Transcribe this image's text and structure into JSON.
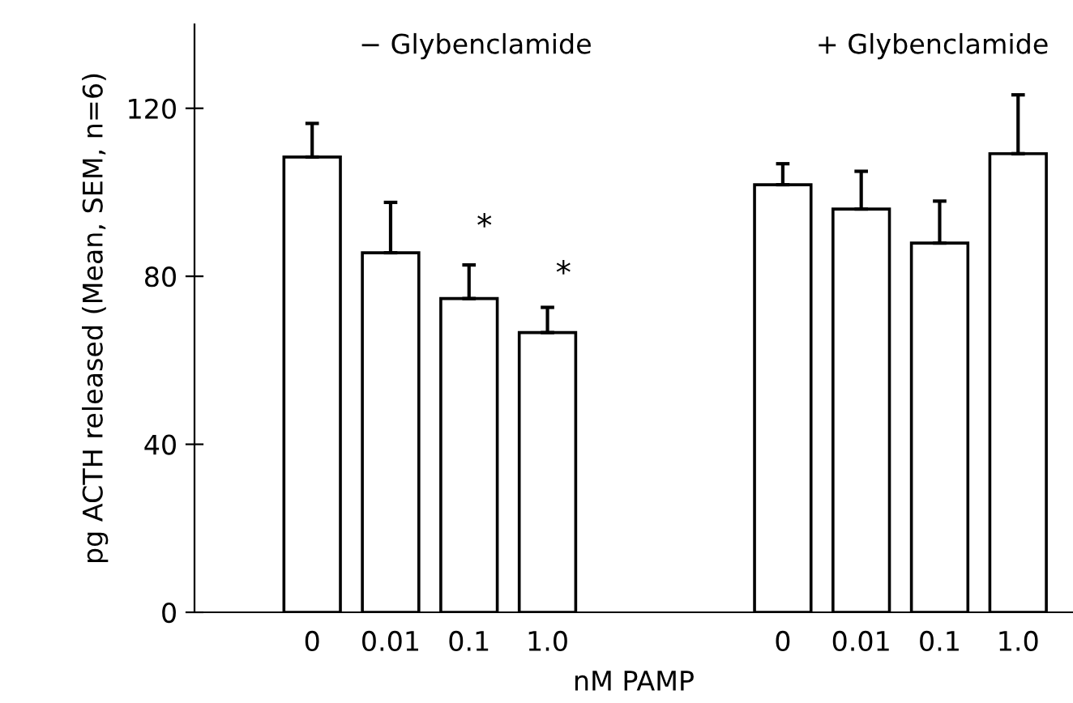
{
  "chart_data": {
    "type": "bar",
    "xlabel": "nM PAMP",
    "ylabel": "pg ACTH released (Mean, SEM, n=6)",
    "categories": [
      null,
      "0",
      "0.01",
      "0.1",
      "1.0",
      null,
      null,
      "0",
      "0.01",
      "0.1",
      "1.0"
    ],
    "series": [
      {
        "color": "#ffffff",
        "values": [
          null,
          108.4,
          85.6,
          74.7,
          66.6,
          null,
          null,
          101.8,
          96,
          87.9,
          109.2
        ],
        "errors": [
          null,
          8,
          12,
          8,
          6,
          null,
          null,
          5,
          9,
          10,
          14
        ]
      }
    ],
    "ylim": [
      0,
      140
    ],
    "yticks": [
      0,
      40,
      80,
      120
    ],
    "grid": false,
    "legend": false,
    "annotations": [
      "− Glybenclamide",
      "+ Glybenclamide",
      "*",
      "*"
    ]
  }
}
